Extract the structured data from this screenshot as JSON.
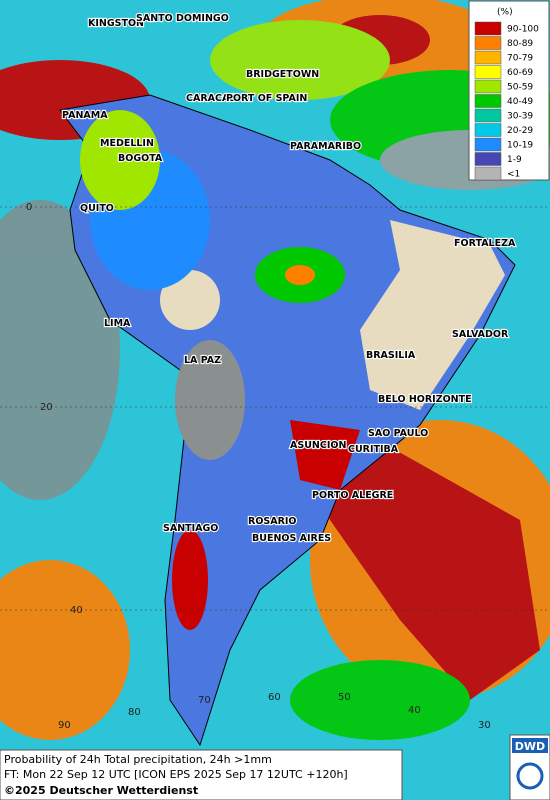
{
  "legend": {
    "title": "(%)",
    "items": [
      {
        "label": "90-100",
        "color": "#c80000"
      },
      {
        "label": "80-89",
        "color": "#ff8000"
      },
      {
        "label": "70-79",
        "color": "#ffb400"
      },
      {
        "label": "60-69",
        "color": "#ffff00"
      },
      {
        "label": "50-59",
        "color": "#a0e600"
      },
      {
        "label": "40-49",
        "color": "#00c800"
      },
      {
        "label": "30-39",
        "color": "#00c8a0"
      },
      {
        "label": "20-29",
        "color": "#00c8e6"
      },
      {
        "label": "10-19",
        "color": "#1e8cff"
      },
      {
        "label": "1-9",
        "color": "#4646b4"
      },
      {
        "label": "<1",
        "color": "#b4b4b4"
      }
    ]
  },
  "cities": [
    "KINGSTON",
    "SANTO DOMINGO",
    "BRIDGETOWN",
    "CARACAS",
    "PORT OF SPAIN",
    "PANAMA",
    "PARAMARIBO",
    "MEDELLIN",
    "BOGOTA",
    "QUITO",
    "FORTALEZA",
    "LIMA",
    "SALVADOR",
    "LA PAZ",
    "BRASILIA",
    "BELO HORIZONTE",
    "SAO PAULO",
    "ASUNCION",
    "CURITIBA",
    "PORTO ALEGRE",
    "SANTIAGO",
    "ROSARIO",
    "BUENOS AIRES"
  ],
  "grid_labels": [
    "0",
    "20",
    "40",
    "90",
    "80",
    "70",
    "60",
    "50",
    "40",
    "30"
  ],
  "footer": {
    "line1": "Probability of 24h Total precipitation, 24h >1mm",
    "line2": "FT: Mon 22 Sep 12 UTC [ICON EPS 2025 Sep 17 12UTC +120h]",
    "line3": "©2025 Deutscher Wetterdienst"
  },
  "logo": "DWD"
}
